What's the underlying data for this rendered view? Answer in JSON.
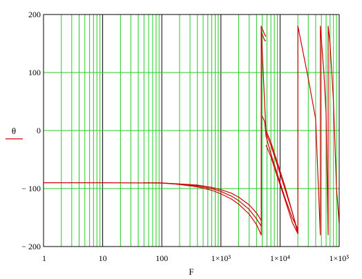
{
  "chart_data": {
    "type": "line",
    "xlabel": "F",
    "ylabel": "θ",
    "x_scale": "log",
    "xlim": [
      1,
      100000
    ],
    "ylim": [
      -200,
      200
    ],
    "grid": true,
    "legend": "left-middle",
    "colors": {
      "grid_minor": "#22cc22",
      "grid_major": "#000000",
      "series": "#cc0000",
      "background": "#ffffff"
    },
    "x_ticks": [
      {
        "value": 1,
        "label": "1"
      },
      {
        "value": 10,
        "label": "10"
      },
      {
        "value": 100,
        "label": "100"
      },
      {
        "value": 1000,
        "label": "1×10³"
      },
      {
        "value": 10000,
        "label": "1×10⁴"
      },
      {
        "value": 100000,
        "label": "1×10⁵"
      }
    ],
    "y_ticks": [
      {
        "value": -200,
        "label": "− 200"
      },
      {
        "value": -100,
        "label": "− 100"
      },
      {
        "value": 0,
        "label": "0"
      },
      {
        "value": 100,
        "label": "100"
      },
      {
        "value": 200,
        "label": "200"
      }
    ],
    "series": [
      {
        "x": [
          1,
          10,
          100,
          200,
          400,
          700,
          1000,
          1500,
          2000,
          3000,
          4000,
          4800,
          4800,
          5500,
          5800
        ],
        "y": [
          -90,
          -90,
          -90.5,
          -92,
          -94,
          -98,
          -102,
          -108,
          -115,
          -128,
          -142,
          -155,
          180,
          165,
          162
        ]
      },
      {
        "x": [
          50,
          100,
          200,
          400,
          700,
          1000,
          1500,
          2000,
          3000,
          4000,
          4800,
          4800,
          5500,
          5800
        ],
        "y": [
          -90,
          -90.5,
          -92.5,
          -95.5,
          -100,
          -105,
          -113,
          -121,
          -136,
          -152,
          -165,
          170,
          155,
          155
        ]
      },
      {
        "x": [
          70,
          100,
          200,
          400,
          700,
          1000,
          1500,
          2000,
          3000,
          4000,
          4800,
          4800,
          5800,
          7000,
          9000,
          12000,
          16000,
          20000,
          20000,
          25000,
          30000,
          40000,
          48000,
          48000,
          55000,
          60000,
          65000,
          65000,
          70000,
          75000,
          80000,
          90000,
          100000
        ],
        "y": [
          -90,
          -90.5,
          -93,
          -97,
          -103,
          -109,
          -118,
          -127,
          -144,
          -162,
          -180,
          175,
          -5,
          -25,
          -60,
          -100,
          -140,
          -178,
          180,
          130,
          90,
          20,
          -180,
          180,
          100,
          30,
          -180,
          180,
          150,
          100,
          50,
          -100,
          -160
        ]
      },
      {
        "x": [
          5000,
          5500,
          5800,
          7000,
          9000,
          12000,
          16000,
          20000
        ],
        "y": [
          25,
          15,
          -10,
          -40,
          -75,
          -115,
          -150,
          -170
        ]
      },
      {
        "x": [
          5800,
          7000,
          9000,
          12000,
          16000,
          20000
        ],
        "y": [
          -25,
          -45,
          -80,
          -118,
          -158,
          -178
        ]
      },
      {
        "x": [
          5800,
          7000,
          9000,
          12000,
          16000,
          20000
        ],
        "y": [
          0,
          -20,
          -55,
          -95,
          -140,
          -175
        ]
      }
    ]
  }
}
